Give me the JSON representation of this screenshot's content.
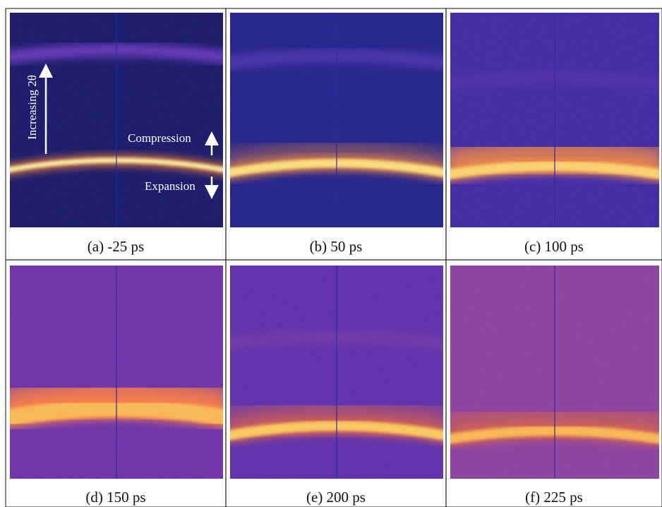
{
  "panels": [
    {
      "caption": "(a) -25 ps"
    },
    {
      "caption": "(b) 50 ps"
    },
    {
      "caption": "(c) 100 ps"
    },
    {
      "caption": "(d) 150 ps"
    },
    {
      "caption": "(e) 200 ps"
    },
    {
      "caption": "(f) 225 ps"
    }
  ],
  "annotations": {
    "increasing": "Increasing 2θ",
    "compression": "Compression",
    "expansion": "Expansion"
  }
}
